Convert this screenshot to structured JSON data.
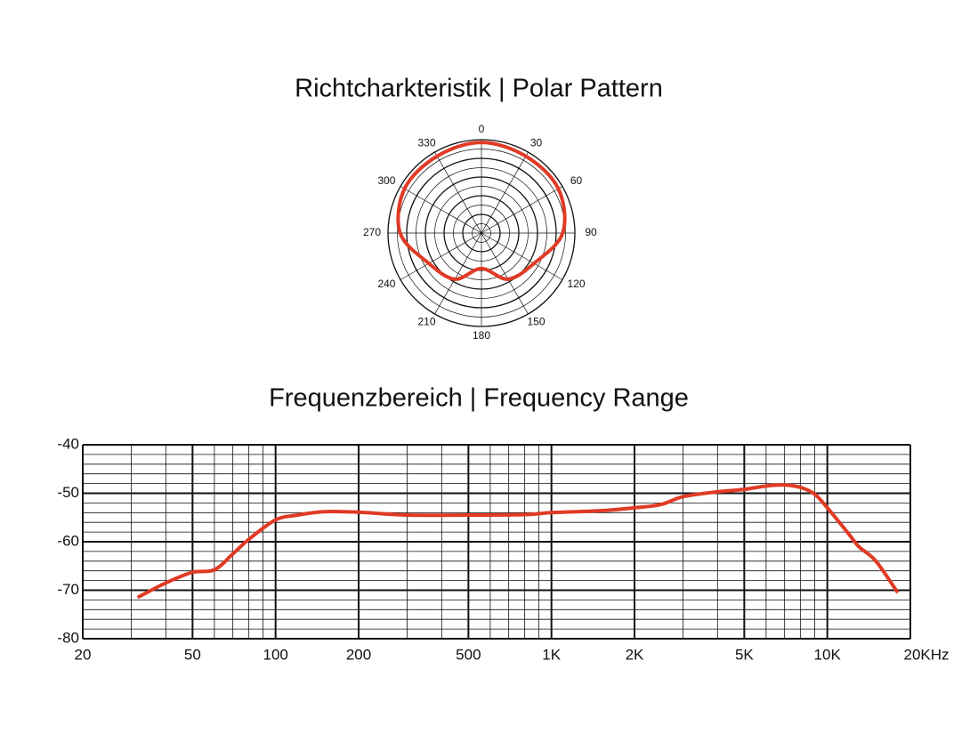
{
  "chart_data": [
    {
      "type": "polar",
      "title": "Richtcharkteristik | Polar Pattern",
      "angles": [
        0,
        30,
        60,
        90,
        120,
        150,
        180,
        210,
        240,
        270,
        300,
        330
      ],
      "values": [
        9.7,
        9.5,
        9.5,
        8.7,
        6.5,
        5.7,
        3.8,
        5.7,
        6.5,
        8.7,
        9.5,
        9.5
      ],
      "rlim": [
        0,
        10
      ],
      "rticks": [
        1,
        2,
        3,
        4,
        5,
        6,
        7,
        8,
        9,
        10
      ],
      "color": "#e03a25"
    },
    {
      "type": "line",
      "title": "Frequenzbereich | Frequency Range",
      "log_x": true,
      "grid": true,
      "color": "#e03a25",
      "x": [
        31.6,
        40,
        50,
        60,
        70,
        80,
        100,
        120,
        150,
        200,
        300,
        500,
        800,
        1000,
        1500,
        2000,
        2500,
        3000,
        4000,
        5000,
        6000,
        7000,
        8000,
        9000,
        10000,
        12000,
        13000,
        15000,
        18000
      ],
      "values": [
        -71.5,
        -68.5,
        -66.3,
        -65.8,
        -62.5,
        -59.5,
        -55.5,
        -54.5,
        -53.8,
        -53.9,
        -54.5,
        -54.5,
        -54.4,
        -54,
        -53.6,
        -53,
        -52.3,
        -50.7,
        -49.7,
        -49.2,
        -48.5,
        -48.3,
        -48.8,
        -50.2,
        -53,
        -58.5,
        -61,
        -64,
        -70.5
      ],
      "xlim": [
        20,
        20000
      ],
      "ylim": [
        -80,
        -40
      ],
      "xticks": [
        20,
        50,
        100,
        200,
        500,
        {
          "value": 1000,
          "label": "1K"
        },
        {
          "value": 2000,
          "label": "2K"
        },
        {
          "value": 5000,
          "label": "5K"
        },
        {
          "value": 10000,
          "label": "10K"
        },
        {
          "value": 20000,
          "label": "20KHz"
        }
      ],
      "minor_xticks": [
        30,
        40,
        60,
        70,
        80,
        90,
        300,
        400,
        600,
        700,
        800,
        900,
        3000,
        4000,
        6000,
        7000,
        8000,
        9000
      ],
      "yticks": [
        -40,
        -50,
        -60,
        -70,
        -80
      ],
      "minor_yticks": [
        -42,
        -44,
        -46,
        -48,
        -52,
        -54,
        -56,
        -58,
        -62,
        -64,
        -66,
        -68,
        -72,
        -74,
        -76,
        -78
      ]
    }
  ]
}
